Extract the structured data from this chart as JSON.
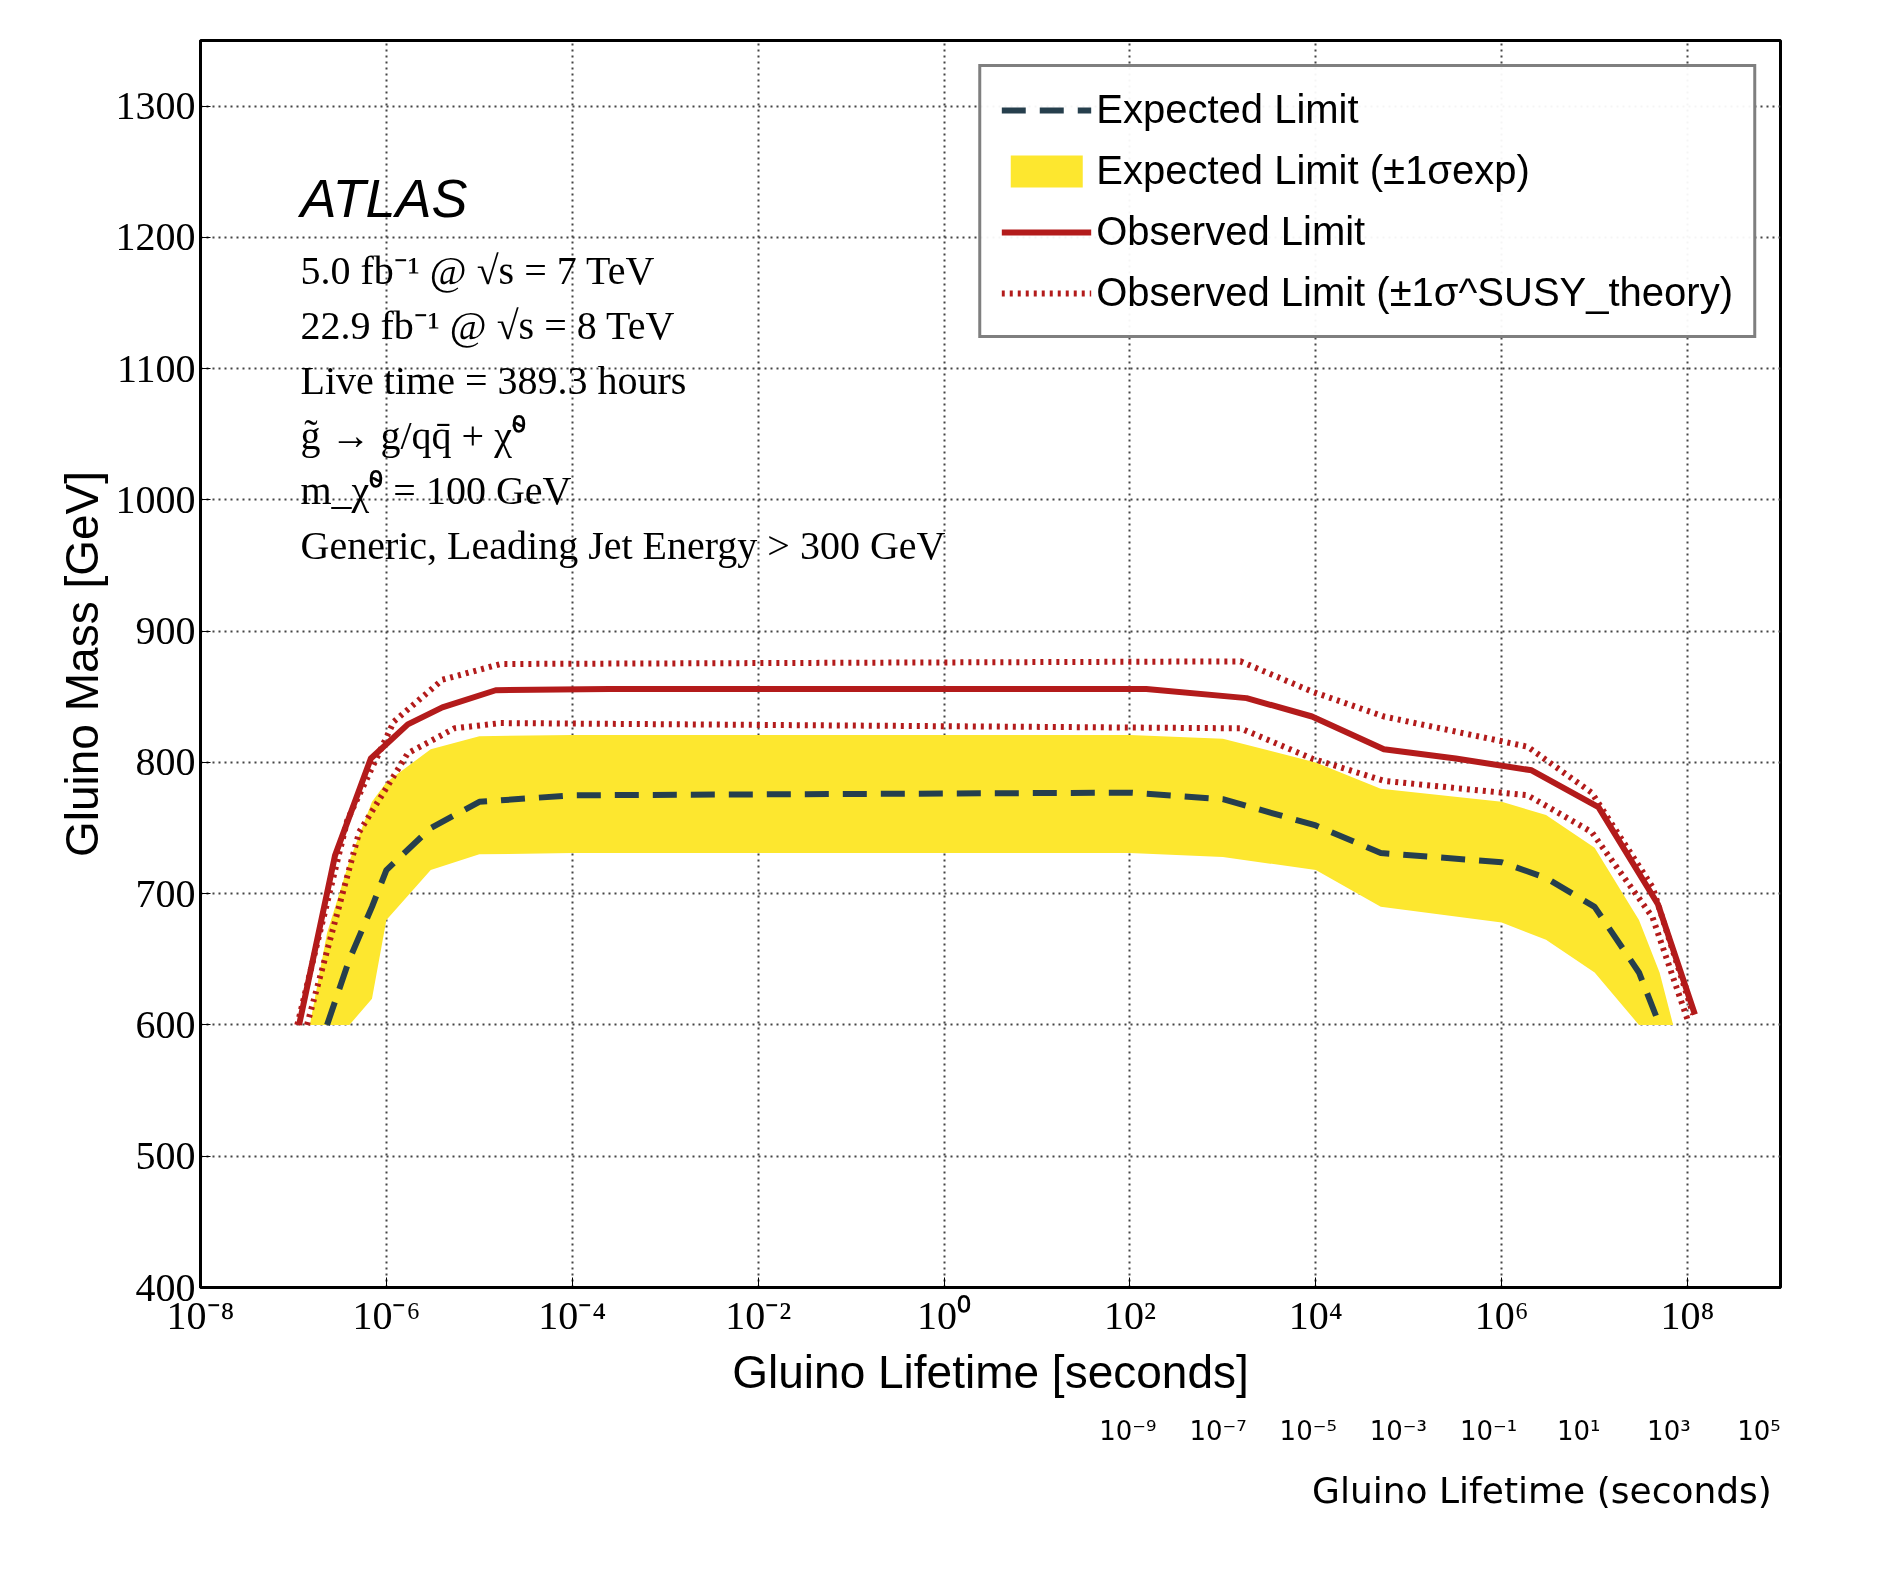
{
  "chart_data": {
    "type": "line",
    "xlabel": "Gluino Lifetime [seconds]",
    "ylabel": "Gluino Mass [GeV]",
    "log": "x",
    "xlim": [
      1e-08,
      1000000000.0
    ],
    "ylim": [
      400,
      1350
    ],
    "xticks": [
      {
        "value": 1e-08,
        "label": "10⁻⁸"
      },
      {
        "value": 1e-06,
        "label": "10⁻⁶"
      },
      {
        "value": 0.0001,
        "label": "10⁻⁴"
      },
      {
        "value": 0.01,
        "label": "10⁻²"
      },
      {
        "value": 1,
        "label": "10⁰"
      },
      {
        "value": 100,
        "label": "10²"
      },
      {
        "value": 10000.0,
        "label": "10⁴"
      },
      {
        "value": 1000000.0,
        "label": "10⁶"
      },
      {
        "value": 100000000.0,
        "label": "10⁸"
      }
    ],
    "yticks": [
      400,
      500,
      600,
      700,
      800,
      900,
      1000,
      1100,
      1200,
      1300
    ],
    "grid": true,
    "legend": "top right",
    "series": [
      {
        "name": "Expected Limit",
        "line_style": "dashed",
        "color": "#263f4d",
        "x": [
          2.3e-07,
          4e-07,
          7e-07,
          1e-06,
          3e-06,
          1e-05,
          0.0001,
          100,
          1000,
          10000.0,
          50000.0,
          1000000.0,
          3000000.0,
          10000000.0,
          30000000.0,
          50000000.0
        ],
        "values": [
          600,
          650,
          690,
          718,
          750,
          770,
          775,
          777,
          772,
          752,
          731,
          724,
          712,
          690,
          640,
          600
        ]
      },
      {
        "name": "Expected Limit (±1σexp)",
        "type": "area",
        "color": "#fde72f",
        "x": [
          1.5e-07,
          2.3e-07,
          4e-07,
          7e-07,
          1e-06,
          3e-06,
          1e-05,
          0.0001,
          100,
          1000,
          10000.0,
          50000.0,
          1000000.0,
          3000000.0,
          10000000.0,
          30000000.0,
          50000000.0,
          70000000.0
        ],
        "lower": [
          600,
          600,
          600,
          620,
          680,
          718,
          730,
          731,
          731,
          728,
          718,
          690,
          678,
          665,
          640,
          600,
          600,
          600
        ],
        "upper": [
          600,
          670,
          725,
          770,
          785,
          810,
          820,
          821,
          821,
          818,
          800,
          780,
          770,
          760,
          735,
          680,
          640,
          600
        ],
        "values": [
          null,
          null,
          null,
          null,
          null,
          null,
          null,
          null,
          null,
          null,
          null,
          null,
          null,
          null,
          null,
          null,
          null,
          null
        ]
      },
      {
        "name": "Observed Limit",
        "line_style": "solid",
        "color": "#b31b1b",
        "x": [
          1.15e-07,
          2.8e-07,
          6.8e-07,
          1.7e-06,
          4e-06,
          1.5e-05,
          0.00025,
          150,
          1800,
          9100,
          54000.0,
          320000.0,
          2100000.0,
          11000000.0,
          48000000.0,
          120000000.0
        ],
        "values": [
          600,
          729,
          803,
          829,
          842,
          855,
          856,
          856,
          849,
          835,
          810,
          803,
          794,
          766,
          692,
          608
        ]
      },
      {
        "name": "Observed Limit (±1σ^SUSY_theory)",
        "line_style": "dotted",
        "color": "#b31b1b",
        "x": [
          1.1e-07,
          3.8e-07,
          1.2e-06,
          4e-06,
          1.7e-05,
          1550,
          9100,
          54000.0,
          1900000.0,
          9300000.0,
          42000000.0,
          115000000.0
        ],
        "values": [
          600,
          756,
          831,
          863,
          875,
          877,
          854,
          835,
          812,
          777,
          705,
          608
        ]
      },
      {
        "line_style": "dotted",
        "color": "#b31b1b",
        "x": [
          1.4e-07,
          5.1e-07,
          1.7e-06,
          5.4e-06,
          1.7e-05,
          1550,
          9100,
          54000.0,
          1900000.0,
          9300000.0,
          42000000.0,
          100000000.0
        ],
        "values": [
          600,
          747,
          807,
          826,
          830,
          826,
          803,
          786,
          775,
          747,
          682,
          604
        ]
      }
    ],
    "annotations": [
      "ATLAS",
      "5.0  fb⁻¹ @ √s = 7 TeV",
      "22.9 fb⁻¹ @ √s = 8 TeV",
      "Live time = 389.3 hours",
      "g̃ → g/qq̄ + χ̃⁰",
      "m_χ̃⁰ = 100 GeV",
      "Generic, Leading Jet Energy > 300 GeV",
      "10⁻⁹",
      "10⁻⁷",
      "10⁻⁵",
      "10⁻³",
      "10⁻¹",
      "10¹",
      "10³",
      "10⁵",
      "Gluino Lifetime (seconds)"
    ]
  }
}
